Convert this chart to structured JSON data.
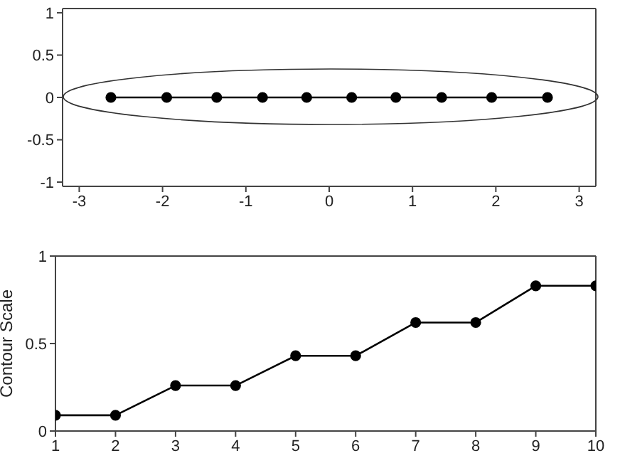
{
  "chart_data": [
    {
      "type": "line",
      "marker": "circle",
      "line_style": "solid",
      "grid": false,
      "legend": false,
      "x": [
        -2.62,
        -1.95,
        -1.35,
        -0.8,
        -0.27,
        0.27,
        0.8,
        1.35,
        1.95,
        2.62
      ],
      "xlim": [
        -3.2,
        3.2
      ],
      "xticks": [
        -3,
        -2,
        -1,
        0,
        1,
        2,
        3
      ],
      "ylim": [
        -1.05,
        1.05
      ],
      "yticks": [
        -1,
        -0.5,
        0,
        0.5,
        1
      ],
      "series": [
        {
          "color": "#000000",
          "values": [
            0,
            0,
            0,
            0,
            0,
            0,
            0,
            0,
            0,
            0
          ]
        }
      ]
    },
    {
      "type": "line",
      "marker": "circle",
      "line_style": "solid",
      "grid": false,
      "legend": false,
      "ylabel": "Contour Scale",
      "x": [
        1,
        2,
        3,
        4,
        5,
        6,
        7,
        8,
        9,
        10
      ],
      "xlim": [
        1,
        10
      ],
      "xticks": [
        1,
        2,
        3,
        4,
        5,
        6,
        7,
        8,
        9,
        10
      ],
      "ylim": [
        0,
        1
      ],
      "yticks": [
        0,
        0.5,
        1
      ],
      "series": [
        {
          "color": "#000000",
          "values": [
            0.09,
            0.09,
            0.26,
            0.26,
            0.43,
            0.43,
            0.62,
            0.62,
            0.83,
            0.83
          ]
        }
      ]
    }
  ]
}
